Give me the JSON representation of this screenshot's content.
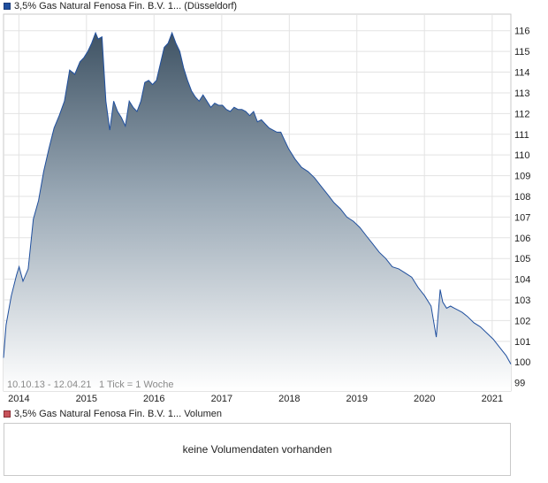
{
  "legend": {
    "price_label": "3,5% Gas Natural Fenosa Fin. B.V. 1... (Düsseldorf)",
    "volume_label": "3,5% Gas Natural Fenosa Fin. B.V. 1... Volumen",
    "price_color": "#1f4f9e",
    "volume_color": "#c8525a"
  },
  "chart_info": {
    "date_range": "10.10.13 - 12.04.21",
    "tick_info": "1 Tick = 1 Woche"
  },
  "volume": {
    "empty_text": "keine Volumendaten vorhanden"
  },
  "chart_data": {
    "type": "area",
    "title": "",
    "xlabel": "",
    "ylabel": "",
    "x_ticks": [
      "2014",
      "2015",
      "2016",
      "2017",
      "2018",
      "2019",
      "2020",
      "2021"
    ],
    "y_ticks": [
      99,
      100,
      101,
      102,
      103,
      104,
      105,
      106,
      107,
      108,
      109,
      110,
      111,
      112,
      113,
      114,
      115,
      116
    ],
    "xlim": [
      "2013-10-10",
      "2021-04-12"
    ],
    "ylim": [
      98.6,
      116.8
    ],
    "grid": true,
    "y_axis_side": "right",
    "series": [
      {
        "name": "3,5% Gas Natural Fenosa Fin. B.V. 1... (Düsseldorf)",
        "x": [
          "2013-10-10",
          "2013-10-24",
          "2013-11-21",
          "2013-12-19",
          "2014-01-02",
          "2014-01-23",
          "2014-02-20",
          "2014-03-20",
          "2014-04-17",
          "2014-05-15",
          "2014-06-12",
          "2014-07-10",
          "2014-08-07",
          "2014-09-04",
          "2014-10-02",
          "2014-10-30",
          "2014-11-27",
          "2014-12-18",
          "2015-01-08",
          "2015-01-29",
          "2015-02-19",
          "2015-03-05",
          "2015-03-26",
          "2015-04-16",
          "2015-05-07",
          "2015-05-28",
          "2015-06-18",
          "2015-07-09",
          "2015-07-30",
          "2015-08-20",
          "2015-09-10",
          "2015-10-01",
          "2015-10-22",
          "2015-11-12",
          "2015-12-03",
          "2015-12-24",
          "2016-01-14",
          "2016-02-04",
          "2016-02-25",
          "2016-03-17",
          "2016-04-07",
          "2016-04-28",
          "2016-05-19",
          "2016-06-09",
          "2016-06-30",
          "2016-07-21",
          "2016-08-11",
          "2016-09-01",
          "2016-09-22",
          "2016-10-13",
          "2016-11-03",
          "2016-11-24",
          "2016-12-15",
          "2017-01-05",
          "2017-01-26",
          "2017-02-16",
          "2017-03-09",
          "2017-03-30",
          "2017-04-20",
          "2017-05-11",
          "2017-06-01",
          "2017-06-22",
          "2017-07-13",
          "2017-08-03",
          "2017-08-24",
          "2017-09-14",
          "2017-10-05",
          "2017-10-26",
          "2017-11-16",
          "2017-12-07",
          "2017-12-28",
          "2018-02-01",
          "2018-03-08",
          "2018-04-12",
          "2018-05-17",
          "2018-06-21",
          "2018-07-26",
          "2018-08-30",
          "2018-10-04",
          "2018-11-08",
          "2018-12-13",
          "2019-01-17",
          "2019-02-21",
          "2019-03-28",
          "2019-05-02",
          "2019-06-06",
          "2019-07-11",
          "2019-08-15",
          "2019-09-19",
          "2019-10-24",
          "2019-11-28",
          "2020-01-02",
          "2020-02-06",
          "2020-03-05",
          "2020-03-19",
          "2020-03-26",
          "2020-04-09",
          "2020-04-30",
          "2020-05-21",
          "2020-06-11",
          "2020-07-02",
          "2020-07-23",
          "2020-08-20",
          "2020-09-24",
          "2020-10-29",
          "2020-12-03",
          "2021-01-07",
          "2021-02-11",
          "2021-03-18",
          "2021-04-12"
        ],
        "values": [
          100.2,
          101.8,
          103.2,
          104.2,
          104.6,
          103.9,
          104.5,
          106.9,
          107.8,
          109.2,
          110.3,
          111.3,
          111.9,
          112.6,
          114.1,
          113.9,
          114.5,
          114.7,
          115.0,
          115.4,
          115.9,
          115.6,
          115.7,
          112.6,
          111.2,
          112.6,
          112.1,
          111.8,
          111.4,
          112.6,
          112.3,
          112.1,
          112.6,
          113.5,
          113.6,
          113.4,
          113.6,
          114.4,
          115.2,
          115.4,
          115.9,
          115.4,
          115.0,
          114.2,
          113.6,
          113.1,
          112.8,
          112.6,
          112.9,
          112.6,
          112.3,
          112.5,
          112.4,
          112.4,
          112.2,
          112.1,
          112.3,
          112.2,
          112.2,
          112.1,
          111.9,
          112.1,
          111.6,
          111.7,
          111.5,
          111.3,
          111.2,
          111.1,
          111.1,
          110.7,
          110.3,
          109.8,
          109.4,
          109.2,
          108.9,
          108.5,
          108.1,
          107.7,
          107.4,
          107.0,
          106.8,
          106.5,
          106.1,
          105.7,
          105.3,
          105.0,
          104.6,
          104.5,
          104.3,
          104.1,
          103.6,
          103.2,
          102.7,
          101.2,
          102.7,
          103.5,
          102.9,
          102.6,
          102.7,
          102.6,
          102.5,
          102.4,
          102.2,
          101.9,
          101.7,
          101.4,
          101.1,
          100.7,
          100.3,
          99.9
        ]
      }
    ]
  }
}
